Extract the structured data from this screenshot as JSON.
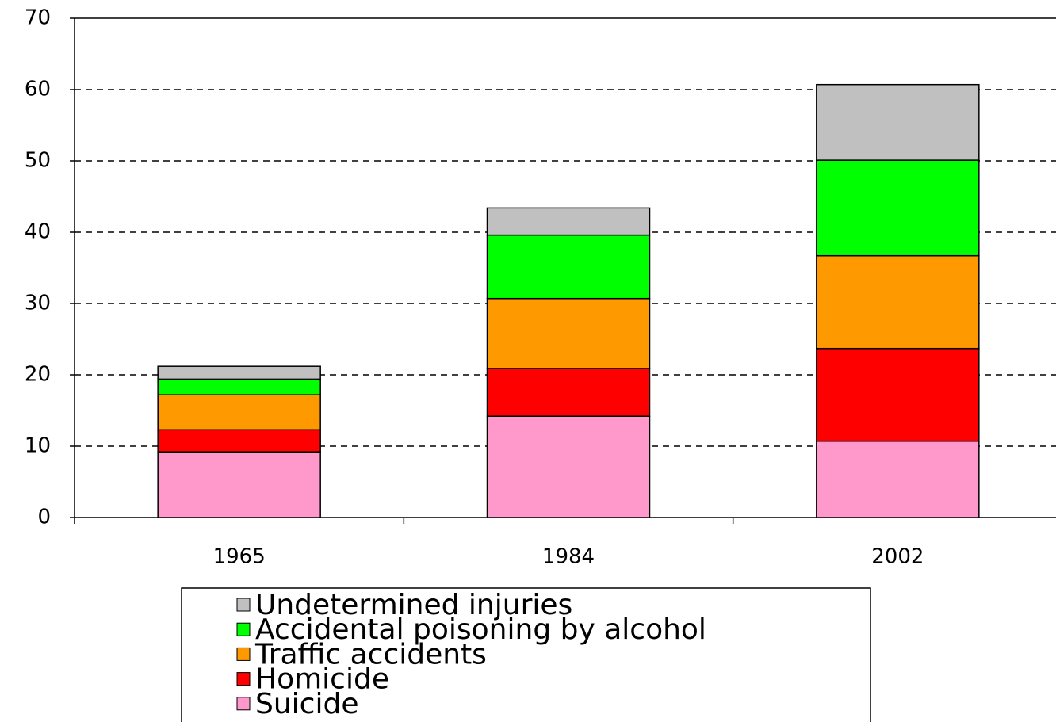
{
  "chart_data": {
    "type": "stacked_bar",
    "categories": [
      "1965",
      "1984",
      "2002"
    ],
    "series": [
      {
        "name": "Suicide",
        "color": "#ff99cc",
        "values": [
          9.2,
          14.2,
          10.7
        ]
      },
      {
        "name": "Homicide",
        "color": "#ff0000",
        "values": [
          3.1,
          6.7,
          13.0
        ]
      },
      {
        "name": "Traffic accidents",
        "color": "#ff9900",
        "values": [
          4.9,
          9.8,
          13.0
        ]
      },
      {
        "name": "Accidental poisoning by alcohol",
        "color": "#00ff00",
        "values": [
          2.2,
          8.9,
          13.4
        ]
      },
      {
        "name": "Undetermined injuries",
        "color": "#c0c0c0",
        "values": [
          1.8,
          3.8,
          10.6
        ]
      }
    ],
    "ylim": [
      0,
      70
    ],
    "yticks": [
      0,
      10,
      20,
      30,
      40,
      50,
      60,
      70
    ],
    "grid": true
  }
}
